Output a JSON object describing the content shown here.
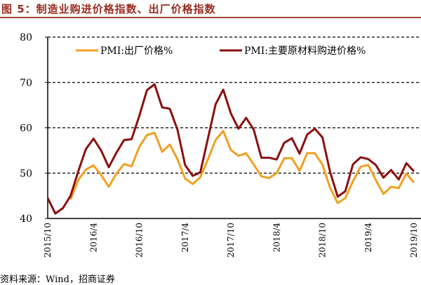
{
  "title": "图 5：制造业购进价格指数、出厂价格指数",
  "source": "资料来源：Wind，招商证券",
  "colors": {
    "output_price": "#f0a020",
    "input_price": "#8b0f0f",
    "title": "#9b2b1f"
  },
  "chart_data": {
    "type": "line",
    "title": "制造业购进价格指数、出厂价格指数",
    "xlabel": "",
    "ylabel": "",
    "ylim": [
      40,
      80
    ],
    "yticks": [
      "40",
      "50",
      "60",
      "70",
      "80"
    ],
    "grid": "horizontal dashed",
    "legend_position": "top",
    "x_start": "2015/10",
    "xtick_labels": [
      "2015/10",
      "2016/4",
      "2016/10",
      "2017/4",
      "2017/10",
      "2018/4",
      "2018/10",
      "2019/4",
      "2019/10"
    ],
    "xtick_month_index": [
      0,
      6,
      12,
      18,
      24,
      30,
      36,
      42,
      48
    ],
    "series": [
      {
        "name": "PMI:出厂价格%",
        "start_index": 3,
        "values": [
          44.2,
          48.5,
          50.8,
          51.7,
          49.6,
          47.0,
          49.9,
          52.0,
          51.5,
          55.8,
          58.4,
          58.9,
          54.7,
          56.3,
          53.1,
          48.8,
          47.6,
          49.1,
          53.1,
          57.3,
          59.3,
          55.1,
          53.8,
          54.4,
          51.9,
          49.3,
          48.9,
          50.0,
          53.3,
          53.3,
          50.5,
          54.4,
          54.4,
          51.9,
          46.8,
          43.4,
          44.5,
          48.2,
          51.4,
          51.8,
          48.5,
          45.4,
          47.0,
          46.7,
          49.9,
          47.9
        ]
      },
      {
        "name": "PMI:主要原材料购进价格%",
        "start_index": 0,
        "values": [
          44.5,
          41.1,
          42.3,
          45.0,
          50.4,
          55.3,
          57.6,
          55.0,
          51.3,
          54.5,
          57.3,
          57.5,
          62.6,
          68.3,
          69.6,
          64.5,
          64.2,
          59.6,
          51.8,
          49.4,
          50.2,
          57.7,
          65.2,
          68.4,
          63.2,
          59.8,
          62.2,
          59.6,
          53.4,
          53.4,
          53.0,
          56.7,
          57.7,
          54.3,
          58.5,
          59.8,
          57.9,
          50.3,
          44.8,
          46.0,
          51.9,
          53.5,
          53.1,
          51.8,
          49.0,
          50.7,
          48.6,
          52.2,
          50.4
        ]
      }
    ]
  }
}
